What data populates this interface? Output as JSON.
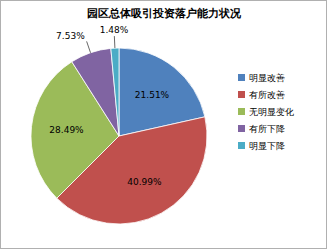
{
  "chart_data": {
    "type": "pie",
    "title": "园区总体吸引投资落户能力状况",
    "categories": [
      "明显改善",
      "有所改善",
      "无明显变化",
      "有所下降",
      "明显下降"
    ],
    "values": [
      21.51,
      40.99,
      28.49,
      7.53,
      1.48
    ],
    "value_labels": [
      "21.51%",
      "40.99%",
      "28.49%",
      "7.53%",
      "1.48%"
    ],
    "colors": [
      "#4f81bd",
      "#c0504d",
      "#9bbb59",
      "#8064a2",
      "#4bacc6"
    ],
    "data_labels": true,
    "legend": "right"
  }
}
